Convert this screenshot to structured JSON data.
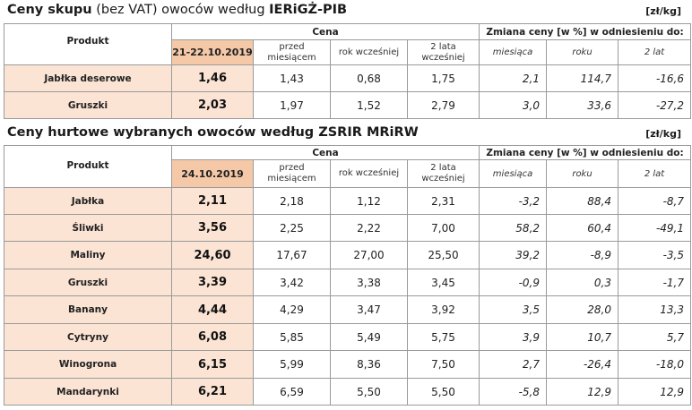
{
  "section1": {
    "title_bold": "Ceny skupu",
    "title_rest": " (bez VAT) owoców według ",
    "title_source": "IERiGŻ-PIB",
    "unit": "[zł/kg]",
    "headers": {
      "product": "Produkt",
      "price_group": "Cena",
      "change_group": "Zmiana ceny [w %] w odniesieniu do:",
      "current_date": "21-22.10.2019",
      "month_ago": "przed miesiącem",
      "year_ago": "rok wcześniej",
      "two_years_ago": "2 lata wcześniej",
      "chg_month": "miesiąca",
      "chg_year": "roku",
      "chg_2y": "2 lat"
    },
    "rows": [
      {
        "product": "Jabłka deserowe",
        "current": "1,46",
        "month": "1,43",
        "year": "0,68",
        "two_years": "1,75",
        "chg_month": "2,1",
        "chg_year": "114,7",
        "chg_2y": "-16,6"
      },
      {
        "product": "Gruszki",
        "current": "2,03",
        "month": "1,97",
        "year": "1,52",
        "two_years": "2,79",
        "chg_month": "3,0",
        "chg_year": "33,6",
        "chg_2y": "-27,2"
      }
    ]
  },
  "section2": {
    "title": "Ceny hurtowe wybranych owoców według ZSRIR MRiRW",
    "unit": "[zł/kg]",
    "headers": {
      "product": "Produkt",
      "price_group": "Cena",
      "change_group": "Zmiana ceny [w %] w odniesieniu do:",
      "current_date": "24.10.2019",
      "month_ago": "przed miesiącem",
      "year_ago": "rok wcześniej",
      "two_years_ago": "2 lata wcześniej",
      "chg_month": "miesiąca",
      "chg_year": "roku",
      "chg_2y": "2 lat"
    },
    "rows": [
      {
        "product": "Jabłka",
        "current": "2,11",
        "month": "2,18",
        "year": "1,12",
        "two_years": "2,31",
        "chg_month": "-3,2",
        "chg_year": "88,4",
        "chg_2y": "-8,7"
      },
      {
        "product": "Śliwki",
        "current": "3,56",
        "month": "2,25",
        "year": "2,22",
        "two_years": "7,00",
        "chg_month": "58,2",
        "chg_year": "60,4",
        "chg_2y": "-49,1"
      },
      {
        "product": "Maliny",
        "current": "24,60",
        "month": "17,67",
        "year": "27,00",
        "two_years": "25,50",
        "chg_month": "39,2",
        "chg_year": "-8,9",
        "chg_2y": "-3,5"
      },
      {
        "product": "Gruszki",
        "current": "3,39",
        "month": "3,42",
        "year": "3,38",
        "two_years": "3,45",
        "chg_month": "-0,9",
        "chg_year": "0,3",
        "chg_2y": "-1,7"
      },
      {
        "product": "Banany",
        "current": "4,44",
        "month": "4,29",
        "year": "3,47",
        "two_years": "3,92",
        "chg_month": "3,5",
        "chg_year": "28,0",
        "chg_2y": "13,3"
      },
      {
        "product": "Cytryny",
        "current": "6,08",
        "month": "5,85",
        "year": "5,49",
        "two_years": "5,75",
        "chg_month": "3,9",
        "chg_year": "10,7",
        "chg_2y": "5,7"
      },
      {
        "product": "Winogrona",
        "current": "6,15",
        "month": "5,99",
        "year": "8,36",
        "two_years": "7,50",
        "chg_month": "2,7",
        "chg_year": "-26,4",
        "chg_2y": "-18,0"
      },
      {
        "product": "Mandarynki",
        "current": "6,21",
        "month": "6,59",
        "year": "5,50",
        "two_years": "5,50",
        "chg_month": "-5,8",
        "chg_year": "12,9",
        "chg_2y": "12,9"
      }
    ]
  }
}
